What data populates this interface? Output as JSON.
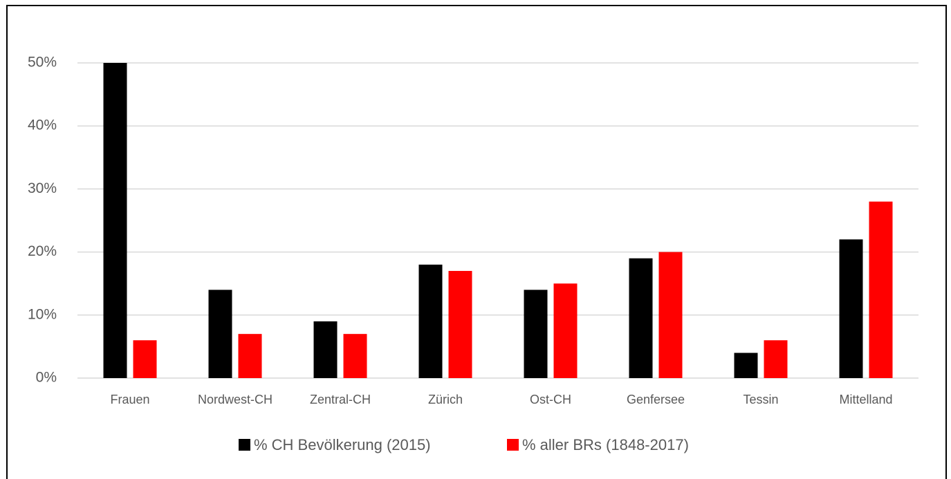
{
  "chart_data": {
    "type": "bar",
    "categories": [
      "Frauen",
      "Nordwest-CH",
      "Zentral-CH",
      "Zürich",
      "Ost-CH",
      "Genfersee",
      "Tessin",
      "Mittelland"
    ],
    "series": [
      {
        "name": "% CH Bevölkerung (2015)",
        "color": "#000000",
        "values": [
          50,
          14,
          9,
          18,
          14,
          19,
          4,
          22
        ]
      },
      {
        "name": "% aller BRs (1848-2017)",
        "color": "#ff0000",
        "values": [
          6,
          7,
          7,
          17,
          15,
          20,
          6,
          28
        ]
      }
    ],
    "ylim": [
      0,
      50
    ],
    "yticks": [
      {
        "value": 0,
        "label": "0%"
      },
      {
        "value": 10,
        "label": "10%"
      },
      {
        "value": 20,
        "label": "20%"
      },
      {
        "value": 30,
        "label": "30%"
      },
      {
        "value": 40,
        "label": "40%"
      },
      {
        "value": 50,
        "label": "50%"
      }
    ],
    "grid": true,
    "legend": "bottom"
  }
}
